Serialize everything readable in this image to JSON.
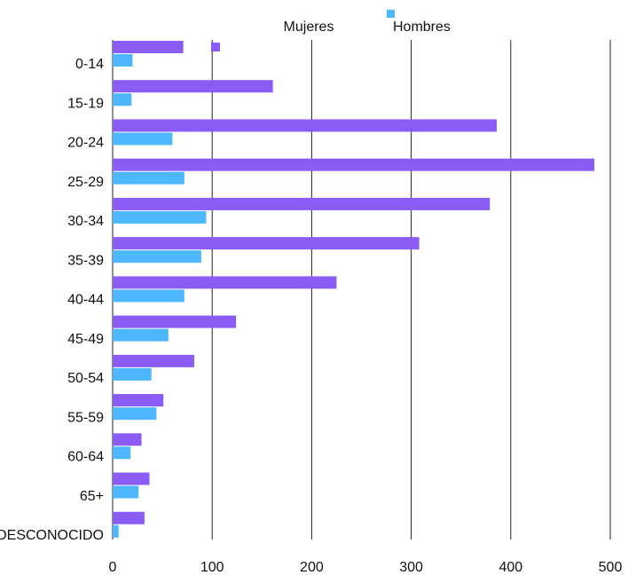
{
  "chart_data": {
    "type": "hbar",
    "categories": [
      "0-14",
      "15-19",
      "20-24",
      "25-29",
      "30-34",
      "35-39",
      "40-44",
      "45-49",
      "50-54",
      "55-59",
      "60-64",
      "65+",
      "DESCONOCIDO"
    ],
    "series": [
      {
        "name": "Mujeres",
        "color": "#8a5cf5",
        "values": [
          71,
          161,
          386,
          484,
          379,
          308,
          225,
          124,
          82,
          51,
          29,
          37,
          32
        ]
      },
      {
        "name": "Hombres",
        "color": "#4db8ff",
        "values": [
          20,
          19,
          60,
          72,
          94,
          89,
          72,
          56,
          39,
          44,
          18,
          26,
          6
        ]
      }
    ],
    "xlim": [
      0,
      500
    ],
    "xticks": [
      0,
      100,
      200,
      300,
      400,
      500
    ],
    "grid": true
  }
}
